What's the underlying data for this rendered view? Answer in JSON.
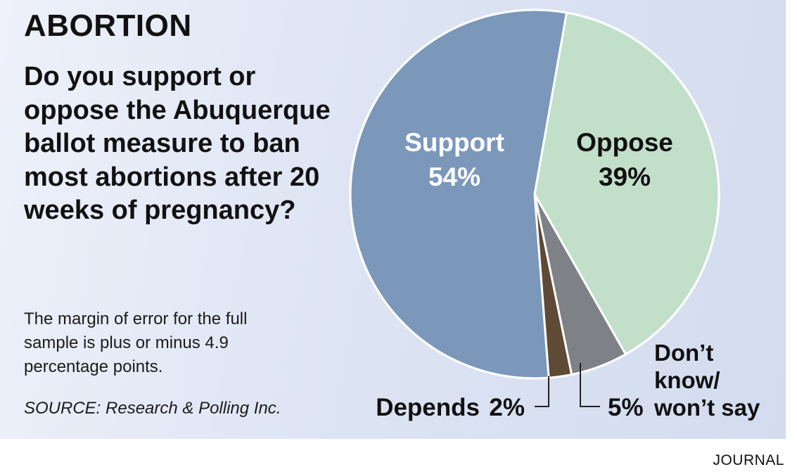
{
  "graphic": {
    "kicker": "ABORTION",
    "question": "Do you support or oppose the Abuquerque ballot measure to ban most abortions after 20 weeks of pregnancy?",
    "note": "The margin of error for the full sample is plus or minus 4.9 percentage points.",
    "source": "SOURCE: Research & Polling Inc.",
    "credit": "JOURNAL"
  },
  "chart_data": {
    "type": "pie",
    "title": "Do you support or oppose the Abuquerque ballot measure to ban most abortions after 20 weeks of pregnancy?",
    "slices": [
      {
        "label": "Support",
        "value": 54,
        "value_label": "54%",
        "color": "#7b98bb"
      },
      {
        "label": "Oppose",
        "value": 39,
        "value_label": "39%",
        "color": "#c2dfca"
      },
      {
        "label_lines": [
          "Don’t",
          "know/",
          "won’t say"
        ],
        "value": 5,
        "value_label": "5%",
        "color": "#7e8186"
      },
      {
        "label": "Depends",
        "value": 2,
        "value_label": "2%",
        "color": "#5f4a36"
      }
    ],
    "start_angle_deg": 10,
    "direction": "clockwise"
  }
}
